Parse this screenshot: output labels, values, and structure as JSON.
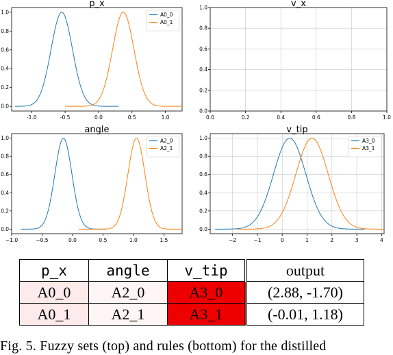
{
  "chart_data": [
    {
      "type": "line",
      "title": "p_x",
      "xlim": [
        -1.3,
        1.25
      ],
      "ylim": [
        -0.05,
        1.05
      ],
      "xticks": [
        "-1.0",
        "-0.5",
        "0.0",
        "0.5",
        "1.0"
      ],
      "xtick_values": [
        -1.0,
        -0.5,
        0.0,
        0.5,
        1.0
      ],
      "yticks": [
        "0.0",
        "0.2",
        "0.4",
        "0.6",
        "0.8",
        "1.0"
      ],
      "grid": false,
      "legend": "top-right",
      "series": [
        {
          "name": "A0_0",
          "color": "#1f77b4",
          "mean": -0.55,
          "sigma": 0.16,
          "x_range": [
            -1.25,
            0.3
          ]
        },
        {
          "name": "A0_1",
          "color": "#ff7f0e",
          "mean": 0.37,
          "sigma": 0.16,
          "x_range": [
            -0.5,
            1.25
          ]
        }
      ]
    },
    {
      "type": "line",
      "title": "v_x",
      "xlim": [
        0,
        1
      ],
      "ylim": [
        0,
        1
      ],
      "xticks": [
        "0.0",
        "0.2",
        "0.4",
        "0.6",
        "0.8",
        "1.0"
      ],
      "xtick_values": [
        0.0,
        0.2,
        0.4,
        0.6,
        0.8,
        1.0
      ],
      "yticks": [
        "0.0",
        "0.2",
        "0.4",
        "0.6",
        "0.8",
        "1.0"
      ],
      "grid": true,
      "legend": "none",
      "series": []
    },
    {
      "type": "line",
      "title": "angle",
      "xlim": [
        -1.0,
        1.8
      ],
      "ylim": [
        -0.05,
        1.05
      ],
      "xticks": [
        "−1.0",
        "−0.5",
        "0.0",
        "0.5",
        "1.0",
        "1.5"
      ],
      "xtick_values": [
        -1.0,
        -0.5,
        0.0,
        0.5,
        1.0,
        1.5
      ],
      "yticks": [
        "0.0",
        "0.2",
        "0.4",
        "0.6",
        "0.8",
        "1.0"
      ],
      "grid": false,
      "legend": "top-right",
      "series": [
        {
          "name": "A2_0",
          "color": "#1f77b4",
          "mean": -0.15,
          "sigma": 0.14,
          "x_range": [
            -0.85,
            0.55
          ]
        },
        {
          "name": "A2_1",
          "color": "#ff7f0e",
          "mean": 1.05,
          "sigma": 0.14,
          "x_range": [
            0.1,
            1.8
          ]
        }
      ]
    },
    {
      "type": "line",
      "title": "v_tip",
      "xlim": [
        -2.9,
        4.1
      ],
      "ylim": [
        -0.05,
        1.05
      ],
      "xticks": [
        "−2",
        "−1",
        "0",
        "1",
        "2",
        "3",
        "4"
      ],
      "xtick_values": [
        -2,
        -1,
        0,
        1,
        2,
        3,
        4
      ],
      "yticks": [
        "0.0",
        "0.2",
        "0.4",
        "0.6",
        "0.8",
        "1.0"
      ],
      "grid": true,
      "legend": "top-right",
      "series": [
        {
          "name": "A3_0",
          "color": "#1f77b4",
          "mean": 0.3,
          "sigma": 0.65,
          "x_range": [
            -2.7,
            3.3
          ]
        },
        {
          "name": "A3_1",
          "color": "#ff7f0e",
          "mean": 1.2,
          "sigma": 0.65,
          "x_range": [
            -1.8,
            4.1
          ]
        }
      ]
    }
  ],
  "table": {
    "headers": [
      "p_x",
      "angle",
      "v_tip",
      "output"
    ],
    "rows": [
      {
        "cells": [
          "A0_0",
          "A2_0",
          "A3_0",
          "(2.88, -1.70)"
        ]
      },
      {
        "cells": [
          "A0_1",
          "A2_1",
          "A3_1",
          "(-0.01, 1.18)"
        ]
      }
    ],
    "colors": {
      "light_pink": "#fdeaea",
      "lighter_pink": "#fff5f5",
      "red": "#ee0000"
    }
  },
  "caption": "Fig. 5.   Fuzzy sets (top) and rules (bottom) for the distilled"
}
